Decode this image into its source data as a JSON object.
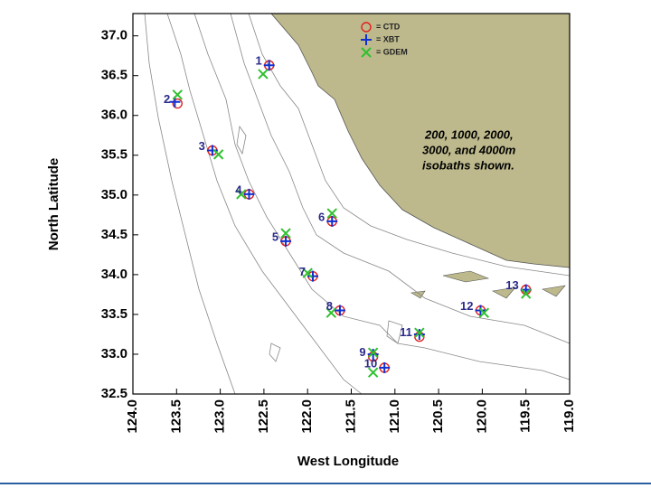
{
  "chart_data": {
    "type": "scatter",
    "xlabel": "West Longitude",
    "ylabel": "North Latitude",
    "xlim": [
      124,
      119
    ],
    "ylim": [
      32.5,
      37.28
    ],
    "xticks": [
      {
        "value": 124,
        "label": "124.0"
      },
      123.5,
      {
        "value": 123,
        "label": "123.0"
      },
      122.5,
      {
        "value": 122,
        "label": "122.0"
      },
      121.5,
      {
        "value": 121,
        "label": "121.0"
      },
      120.5,
      {
        "value": 120,
        "label": "120.0"
      },
      119.5,
      {
        "value": 119,
        "label": "119.0"
      }
    ],
    "yticks": [
      32.5,
      {
        "value": 33,
        "label": "33.0"
      },
      33.5,
      {
        "value": 34,
        "label": "34.0"
      },
      34.5,
      {
        "value": 35,
        "label": "35.0"
      },
      35.5,
      {
        "value": 36,
        "label": "36.0"
      },
      36.5,
      {
        "value": 37,
        "label": "37.0"
      }
    ],
    "annotation": [
      "200, 1000, 2000,",
      "3000, and 4000m",
      "isobaths shown."
    ],
    "point_labels": [
      "1",
      "2",
      "3",
      "4",
      "5",
      "6",
      "7",
      "8",
      "9",
      "10",
      "11",
      "12",
      "13"
    ],
    "series": [
      {
        "name": "= CTD",
        "color": "#e02020",
        "marker": "circle",
        "x": [
          122.44,
          123.49,
          123.09,
          122.67,
          122.25,
          121.72,
          121.94,
          121.63,
          121.25,
          121.12,
          120.72,
          120.02,
          119.5
        ],
        "y": [
          36.63,
          36.15,
          35.56,
          35.01,
          34.42,
          34.67,
          33.98,
          33.55,
          32.97,
          32.83,
          33.22,
          33.55,
          33.81
        ]
      },
      {
        "name": "= XBT",
        "color": "#1030d0",
        "marker": "plus",
        "x": [
          122.44,
          123.52,
          123.09,
          122.67,
          122.25,
          121.72,
          121.94,
          121.63,
          121.25,
          121.12,
          120.72,
          120.02,
          119.5
        ],
        "y": [
          36.63,
          36.17,
          35.56,
          35.01,
          34.42,
          34.67,
          33.98,
          33.55,
          33.0,
          32.83,
          33.25,
          33.55,
          33.81
        ]
      },
      {
        "name": "= GDEM",
        "color": "#30c030",
        "marker": "cross",
        "x": [
          122.51,
          123.49,
          123.02,
          122.76,
          122.25,
          121.72,
          122.0,
          121.73,
          121.25,
          121.25,
          120.72,
          119.98,
          119.5
        ],
        "y": [
          36.52,
          36.26,
          35.51,
          35.01,
          34.52,
          34.77,
          34.02,
          33.52,
          33.02,
          32.77,
          33.27,
          33.52,
          33.76
        ]
      }
    ]
  }
}
